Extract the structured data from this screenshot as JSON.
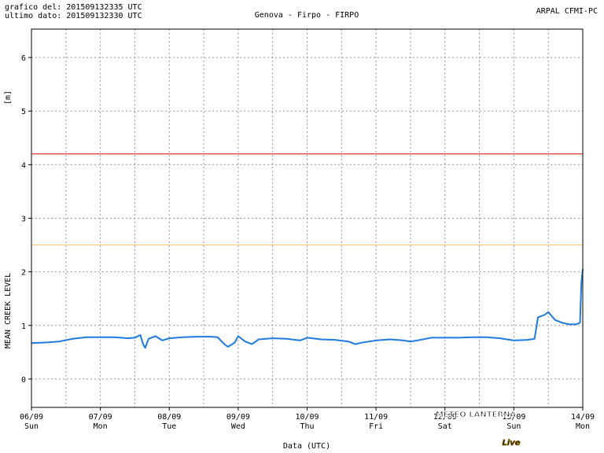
{
  "chart_data": {
    "type": "line",
    "header_left": [
      "grafico del: 201509132335 UTC",
      "ultimo dato: 201509132330 UTC"
    ],
    "title": "Genova - Firpo - FIRPO",
    "header_right": "ARPAL CFMI-PC",
    "y_unit": "[m]",
    "y_label": "MEAN CREEK LEVEL",
    "x_label": "Data (UTC)",
    "watermark": [
      "METEO LANTERNA",
      "Live"
    ],
    "xlim": [
      0,
      8
    ],
    "ylim": [
      -0.53,
      6.53
    ],
    "xticks": [
      {
        "value": 0,
        "label": "06/09",
        "weekday": "Sun"
      },
      {
        "value": 1,
        "label": "07/09",
        "weekday": "Mon"
      },
      {
        "value": 2,
        "label": "08/09",
        "weekday": "Tue"
      },
      {
        "value": 3,
        "label": "09/09",
        "weekday": "Wed"
      },
      {
        "value": 4,
        "label": "10/09",
        "weekday": "Thu"
      },
      {
        "value": 5,
        "label": "11/09",
        "weekday": "Fri"
      },
      {
        "value": 6,
        "label": "12/09",
        "weekday": "Sat"
      },
      {
        "value": 7,
        "label": "13/09",
        "weekday": "Sun"
      },
      {
        "value": 8,
        "label": "14/09",
        "weekday": "Mon"
      }
    ],
    "yticks": [
      0,
      1,
      2,
      3,
      4,
      5,
      6
    ],
    "grid": true,
    "reference_lines": [
      {
        "value": 4.2,
        "color": "#e00000"
      },
      {
        "value": 2.5,
        "color": "#f5c45a"
      }
    ],
    "series": [
      {
        "color": "#1e7be0",
        "x": [
          0,
          0.2,
          0.4,
          0.6,
          0.8,
          1.0,
          1.2,
          1.4,
          1.5,
          1.58,
          1.62,
          1.65,
          1.7,
          1.8,
          1.9,
          2.0,
          2.2,
          2.4,
          2.6,
          2.7,
          2.8,
          2.85,
          2.95,
          3.0,
          3.1,
          3.2,
          3.3,
          3.5,
          3.7,
          3.9,
          4.0,
          4.2,
          4.4,
          4.6,
          4.7,
          4.8,
          5.0,
          5.2,
          5.4,
          5.5,
          5.6,
          5.8,
          6.0,
          6.2,
          6.4,
          6.6,
          6.8,
          7.0,
          7.2,
          7.3,
          7.35,
          7.45,
          7.5,
          7.6,
          7.7,
          7.8,
          7.9,
          7.96,
          7.98,
          8.0
        ],
        "values": [
          0.67,
          0.68,
          0.7,
          0.75,
          0.78,
          0.78,
          0.78,
          0.76,
          0.77,
          0.82,
          0.65,
          0.58,
          0.75,
          0.8,
          0.72,
          0.76,
          0.78,
          0.79,
          0.79,
          0.78,
          0.65,
          0.6,
          0.68,
          0.8,
          0.7,
          0.65,
          0.74,
          0.76,
          0.75,
          0.72,
          0.77,
          0.74,
          0.73,
          0.7,
          0.65,
          0.68,
          0.72,
          0.74,
          0.72,
          0.7,
          0.72,
          0.77,
          0.77,
          0.77,
          0.78,
          0.78,
          0.76,
          0.72,
          0.73,
          0.75,
          1.15,
          1.2,
          1.25,
          1.1,
          1.05,
          1.02,
          1.02,
          1.05,
          1.8,
          2.05
        ]
      }
    ]
  }
}
